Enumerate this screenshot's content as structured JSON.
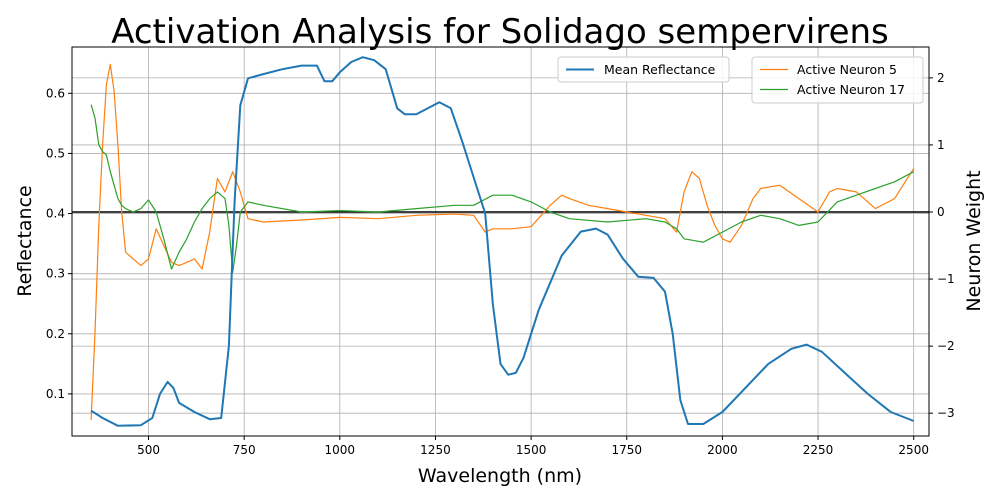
{
  "chart_data": {
    "type": "line",
    "title": "Activation Analysis for Solidago sempervirens",
    "xlabel": "Wavelength (nm)",
    "ylabel": "Reflectance",
    "y2label": "Neuron Weight",
    "xlim": [
      300,
      2540
    ],
    "ylim": [
      0.03,
      0.677
    ],
    "y2lim": [
      -3.34,
      2.46
    ],
    "x_ticks": [
      500,
      750,
      1000,
      1250,
      1500,
      1750,
      2000,
      2250,
      2500
    ],
    "y_ticks": [
      0.1,
      0.2,
      0.3,
      0.4,
      0.5,
      0.6
    ],
    "y2_ticks": [
      -3,
      -2,
      -1,
      0,
      1,
      2
    ],
    "grid": true,
    "zero_line_y2": 0,
    "legends": [
      {
        "placement": "top-center",
        "entries": [
          "Mean Reflectance"
        ]
      },
      {
        "placement": "top-right",
        "entries": [
          "Active Neuron 5",
          "Active Neuron 17"
        ]
      }
    ],
    "series": [
      {
        "name": "Mean Reflectance",
        "axis": "left",
        "color": "#1f77b4",
        "x": [
          350,
          380,
          420,
          480,
          510,
          530,
          550,
          565,
          580,
          620,
          660,
          690,
          710,
          725,
          740,
          760,
          800,
          850,
          900,
          940,
          960,
          980,
          1000,
          1030,
          1060,
          1090,
          1120,
          1150,
          1170,
          1200,
          1230,
          1260,
          1290,
          1320,
          1350,
          1380,
          1400,
          1420,
          1440,
          1460,
          1480,
          1520,
          1580,
          1630,
          1670,
          1700,
          1740,
          1780,
          1820,
          1850,
          1870,
          1890,
          1910,
          1950,
          2000,
          2060,
          2120,
          2180,
          2220,
          2260,
          2320,
          2380,
          2440,
          2500
        ],
        "values": [
          0.072,
          0.06,
          0.047,
          0.048,
          0.06,
          0.1,
          0.12,
          0.11,
          0.085,
          0.07,
          0.058,
          0.06,
          0.18,
          0.42,
          0.58,
          0.625,
          0.632,
          0.64,
          0.646,
          0.646,
          0.62,
          0.62,
          0.635,
          0.652,
          0.66,
          0.655,
          0.64,
          0.575,
          0.565,
          0.565,
          0.575,
          0.585,
          0.575,
          0.52,
          0.46,
          0.4,
          0.25,
          0.15,
          0.132,
          0.135,
          0.16,
          0.24,
          0.33,
          0.37,
          0.375,
          0.365,
          0.325,
          0.295,
          0.293,
          0.27,
          0.2,
          0.09,
          0.05,
          0.05,
          0.07,
          0.11,
          0.15,
          0.175,
          0.182,
          0.17,
          0.135,
          0.1,
          0.07,
          0.055
        ]
      },
      {
        "name": "Active Neuron 5",
        "axis": "right",
        "color": "#ff7f0e",
        "x": [
          350,
          360,
          370,
          380,
          390,
          400,
          410,
          420,
          430,
          440,
          460,
          480,
          500,
          520,
          540,
          560,
          580,
          600,
          620,
          640,
          660,
          680,
          700,
          720,
          740,
          760,
          800,
          900,
          1000,
          1100,
          1200,
          1300,
          1350,
          1380,
          1400,
          1450,
          1500,
          1550,
          1580,
          1600,
          1650,
          1700,
          1750,
          1800,
          1850,
          1880,
          1900,
          1920,
          1940,
          1960,
          1980,
          2000,
          2020,
          2050,
          2080,
          2100,
          2150,
          2200,
          2250,
          2280,
          2300,
          2350,
          2400,
          2450,
          2500
        ],
        "values": [
          -3.1,
          -1.8,
          -0.2,
          1.0,
          1.9,
          2.2,
          1.8,
          1.0,
          0.0,
          -0.6,
          -0.7,
          -0.8,
          -0.7,
          -0.25,
          -0.5,
          -0.75,
          -0.8,
          -0.75,
          -0.7,
          -0.85,
          -0.3,
          0.5,
          0.3,
          0.6,
          0.3,
          -0.1,
          -0.15,
          -0.12,
          -0.08,
          -0.1,
          -0.05,
          -0.03,
          -0.05,
          -0.3,
          -0.25,
          -0.25,
          -0.22,
          0.1,
          0.25,
          0.2,
          0.1,
          0.05,
          0.0,
          -0.05,
          -0.1,
          -0.3,
          0.3,
          0.6,
          0.5,
          0.1,
          -0.2,
          -0.4,
          -0.45,
          -0.2,
          0.2,
          0.35,
          0.4,
          0.2,
          0.0,
          0.3,
          0.35,
          0.3,
          0.05,
          0.2,
          0.65
        ]
      },
      {
        "name": "Active Neuron 17",
        "axis": "right",
        "color": "#2ca02c",
        "x": [
          350,
          360,
          370,
          380,
          390,
          400,
          410,
          420,
          430,
          440,
          460,
          480,
          500,
          520,
          540,
          560,
          580,
          600,
          620,
          640,
          660,
          680,
          700,
          710,
          720,
          730,
          740,
          760,
          800,
          900,
          1000,
          1100,
          1200,
          1300,
          1350,
          1400,
          1450,
          1500,
          1550,
          1600,
          1700,
          1800,
          1850,
          1880,
          1900,
          1950,
          2000,
          2050,
          2100,
          2150,
          2200,
          2250,
          2300,
          2350,
          2400,
          2450,
          2500
        ],
        "values": [
          1.6,
          1.4,
          1.0,
          0.9,
          0.85,
          0.6,
          0.4,
          0.2,
          0.1,
          0.05,
          0.0,
          0.05,
          0.18,
          0.0,
          -0.4,
          -0.85,
          -0.6,
          -0.4,
          -0.15,
          0.05,
          0.2,
          0.3,
          0.2,
          -0.2,
          -0.9,
          -0.5,
          0.0,
          0.15,
          0.1,
          0.0,
          0.02,
          0.0,
          0.05,
          0.1,
          0.1,
          0.25,
          0.25,
          0.15,
          0.0,
          -0.1,
          -0.15,
          -0.1,
          -0.15,
          -0.25,
          -0.4,
          -0.45,
          -0.3,
          -0.15,
          -0.05,
          -0.1,
          -0.2,
          -0.15,
          0.15,
          0.25,
          0.35,
          0.45,
          0.6
        ]
      }
    ]
  }
}
